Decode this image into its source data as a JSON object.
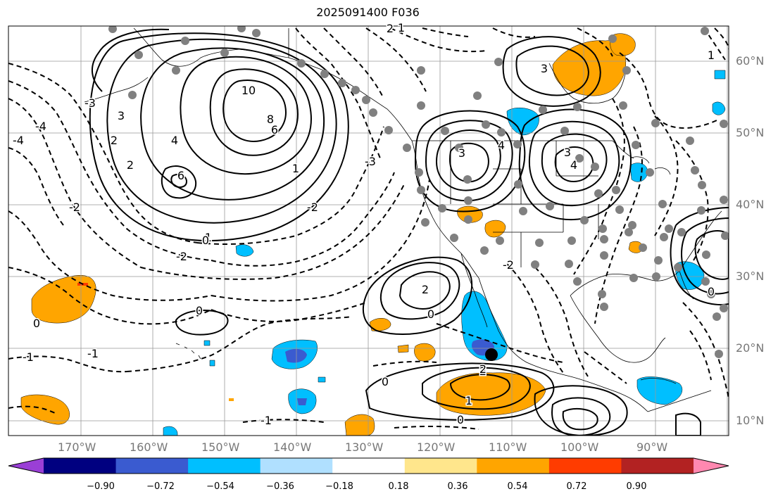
{
  "title": "2025091400 F036",
  "lat_labels": [
    "60°N",
    "50°N",
    "40°N",
    "30°N",
    "20°N",
    "10°N"
  ],
  "lon_labels": [
    "170°W",
    "160°W",
    "150°W",
    "140°W",
    "130°W",
    "120°W",
    "110°W",
    "100°W",
    "90°W"
  ],
  "colorbar": {
    "labels": [
      "−0.90",
      "−0.72",
      "−0.54",
      "−0.36",
      "−0.18",
      "0.18",
      "0.36",
      "0.54",
      "0.72",
      "0.90"
    ],
    "colors": [
      "#9a3fd6",
      "#000080",
      "#3a5bd0",
      "#00bfff",
      "#b0e0ff",
      "#ffffff",
      "#ffe68c",
      "#ffa500",
      "#ff3c00",
      "#b22222",
      "#ff88b0"
    ]
  },
  "contour_labels": [
    "10",
    "8",
    "6",
    "6",
    "4",
    "3",
    "3",
    "3",
    "3",
    "4",
    "2",
    "2",
    "2",
    "2",
    "2",
    "1",
    "1",
    "1",
    "0",
    "0",
    "0",
    "0",
    "0",
    "0",
    "0",
    "-1",
    "-1",
    "-1",
    "-2",
    "-2",
    "-2",
    "-2",
    "-3",
    "-3",
    "-4",
    "-4",
    "4",
    "2",
    "1",
    "1"
  ],
  "fill_colors": {
    "orange": "#ffa500",
    "light_blue": "#00bfff",
    "medium_blue": "#3a5bd0",
    "red": "#ff3c00"
  }
}
